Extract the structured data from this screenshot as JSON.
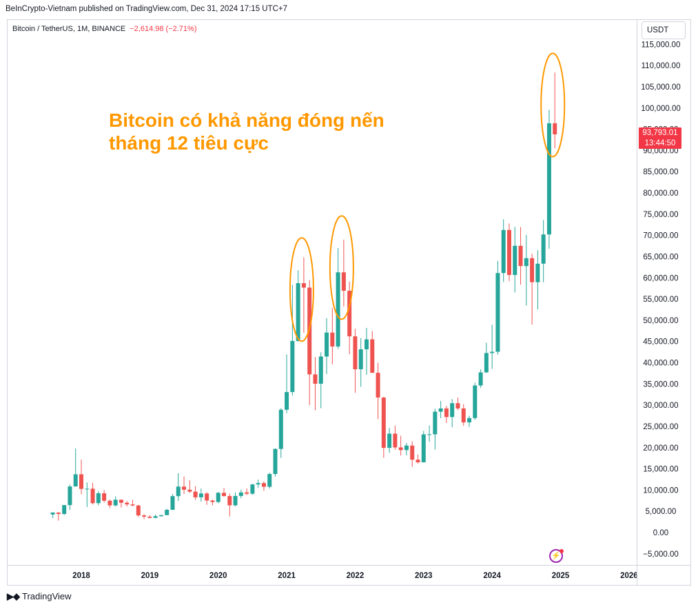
{
  "header": {
    "caption": "BeInCrypto-Vietnam published on TradingView.com, Dec 31, 2024 17:15 UTC+7"
  },
  "symbol": {
    "name": "Bitcoin / TetherUS, 1M, BINANCE",
    "change": "−2,614.98 (−2.71%)"
  },
  "currency_button": "USDT",
  "annotation": {
    "line1": "Bitcoin có khả năng đóng nến",
    "line2": "tháng 12 tiêu cực"
  },
  "price_tag": {
    "price": "93,793.01",
    "countdown": "13:44:50"
  },
  "footer": {
    "logo_mark": "𝟭𝟳",
    "logo_text": "TradingView"
  },
  "colors": {
    "up": "#26a69a",
    "down": "#ef5350",
    "ellipse": "#ff9800",
    "axis_text": "#131722"
  },
  "chart_data": {
    "type": "candlestick",
    "interval": "1M",
    "ylim": [
      -5000,
      115000
    ],
    "y_ticks": [
      -5000,
      0,
      5000,
      10000,
      15000,
      20000,
      25000,
      30000,
      35000,
      40000,
      45000,
      50000,
      55000,
      60000,
      65000,
      70000,
      75000,
      80000,
      85000,
      90000,
      95000,
      100000,
      105000,
      110000,
      115000
    ],
    "y_tick_labels": [
      "−5,000.00",
      "0.00",
      "5,000.00",
      "10,000.00",
      "15,000.00",
      "20,000.00",
      "25,000.00",
      "30,000.00",
      "35,000.00",
      "40,000.00",
      "45,000.00",
      "50,000.00",
      "55,000.00",
      "60,000.00",
      "65,000.00",
      "70,000.00",
      "75,000.00",
      "80,000.00",
      "85,000.00",
      "90,000.00",
      "95,000.00",
      "100,000.00",
      "105,000.00",
      "110,000.00",
      "115,000.00"
    ],
    "x_ticks": [
      {
        "label": "2018",
        "month": "2018-01"
      },
      {
        "label": "2019",
        "month": "2019-01"
      },
      {
        "label": "2020",
        "month": "2020-01"
      },
      {
        "label": "2021",
        "month": "2021-01"
      },
      {
        "label": "2022",
        "month": "2022-01"
      },
      {
        "label": "2023",
        "month": "2023-01"
      },
      {
        "label": "2024",
        "month": "2024-01"
      },
      {
        "label": "2025",
        "month": "2025-01"
      },
      {
        "label": "2026",
        "month": "2026-01"
      }
    ],
    "candles": [
      {
        "t": "2017-08",
        "o": 4261,
        "h": 4745,
        "l": 3400,
        "c": 4724
      },
      {
        "t": "2017-09",
        "o": 4690,
        "h": 4790,
        "l": 2817,
        "c": 4378
      },
      {
        "t": "2017-10",
        "o": 4378,
        "h": 6470,
        "l": 4110,
        "c": 6463
      },
      {
        "t": "2017-11",
        "o": 6463,
        "h": 11300,
        "l": 5325,
        "c": 10855
      },
      {
        "t": "2017-12",
        "o": 10855,
        "h": 19798,
        "l": 10855,
        "c": 13716
      },
      {
        "t": "2018-01",
        "o": 13716,
        "h": 17176,
        "l": 9035,
        "c": 10285
      },
      {
        "t": "2018-02",
        "o": 10285,
        "h": 11786,
        "l": 6000,
        "c": 10326
      },
      {
        "t": "2018-03",
        "o": 10326,
        "h": 11710,
        "l": 6600,
        "c": 6923
      },
      {
        "t": "2018-04",
        "o": 6923,
        "h": 9759,
        "l": 6430,
        "c": 9246
      },
      {
        "t": "2018-05",
        "o": 9246,
        "h": 10020,
        "l": 7032,
        "c": 7494
      },
      {
        "t": "2018-06",
        "o": 7494,
        "h": 7760,
        "l": 5755,
        "c": 6391
      },
      {
        "t": "2018-07",
        "o": 6391,
        "h": 8507,
        "l": 6111,
        "c": 7730
      },
      {
        "t": "2018-08",
        "o": 7730,
        "h": 7760,
        "l": 5880,
        "c": 7011
      },
      {
        "t": "2018-09",
        "o": 7011,
        "h": 7410,
        "l": 6112,
        "c": 6626
      },
      {
        "t": "2018-10",
        "o": 6626,
        "h": 7680,
        "l": 6205,
        "c": 6371
      },
      {
        "t": "2018-11",
        "o": 6371,
        "h": 6525,
        "l": 3652,
        "c": 4041
      },
      {
        "t": "2018-12",
        "o": 4041,
        "h": 4310,
        "l": 3157,
        "c": 3742
      },
      {
        "t": "2019-01",
        "o": 3742,
        "h": 4070,
        "l": 3350,
        "c": 3457
      },
      {
        "t": "2019-02",
        "o": 3457,
        "h": 4210,
        "l": 3371,
        "c": 3855
      },
      {
        "t": "2019-03",
        "o": 3855,
        "h": 4120,
        "l": 3758,
        "c": 4105
      },
      {
        "t": "2019-04",
        "o": 4105,
        "h": 5600,
        "l": 4067,
        "c": 5350
      },
      {
        "t": "2019-05",
        "o": 5350,
        "h": 9074,
        "l": 5332,
        "c": 8574
      },
      {
        "t": "2019-06",
        "o": 8574,
        "h": 13970,
        "l": 7444,
        "c": 10817
      },
      {
        "t": "2019-07",
        "o": 10817,
        "h": 13200,
        "l": 9070,
        "c": 10085
      },
      {
        "t": "2019-08",
        "o": 10085,
        "h": 12325,
        "l": 9320,
        "c": 9630
      },
      {
        "t": "2019-09",
        "o": 9630,
        "h": 10905,
        "l": 7710,
        "c": 8293
      },
      {
        "t": "2019-10",
        "o": 8293,
        "h": 10370,
        "l": 7300,
        "c": 9199
      },
      {
        "t": "2019-11",
        "o": 9199,
        "h": 9513,
        "l": 6515,
        "c": 7546
      },
      {
        "t": "2019-12",
        "o": 7546,
        "h": 7750,
        "l": 6435,
        "c": 7195
      },
      {
        "t": "2020-01",
        "o": 7195,
        "h": 9578,
        "l": 6871,
        "c": 9352
      },
      {
        "t": "2020-02",
        "o": 9352,
        "h": 10500,
        "l": 8445,
        "c": 8599
      },
      {
        "t": "2020-03",
        "o": 8599,
        "h": 9189,
        "l": 3782,
        "c": 6410
      },
      {
        "t": "2020-04",
        "o": 6410,
        "h": 9468,
        "l": 6150,
        "c": 8620
      },
      {
        "t": "2020-05",
        "o": 8620,
        "h": 10067,
        "l": 8106,
        "c": 9448
      },
      {
        "t": "2020-06",
        "o": 9448,
        "h": 10380,
        "l": 8833,
        "c": 9138
      },
      {
        "t": "2020-07",
        "o": 9138,
        "h": 11444,
        "l": 8893,
        "c": 11335
      },
      {
        "t": "2020-08",
        "o": 11335,
        "h": 12468,
        "l": 10525,
        "c": 11649
      },
      {
        "t": "2020-09",
        "o": 11649,
        "h": 12050,
        "l": 9825,
        "c": 10776
      },
      {
        "t": "2020-10",
        "o": 10776,
        "h": 14100,
        "l": 10375,
        "c": 13791
      },
      {
        "t": "2020-11",
        "o": 13791,
        "h": 19863,
        "l": 13195,
        "c": 19695
      },
      {
        "t": "2020-12",
        "o": 19695,
        "h": 29300,
        "l": 17572,
        "c": 28923
      },
      {
        "t": "2021-01",
        "o": 28923,
        "h": 41950,
        "l": 28130,
        "c": 33093
      },
      {
        "t": "2021-02",
        "o": 33093,
        "h": 58352,
        "l": 32296,
        "c": 45136
      },
      {
        "t": "2021-03",
        "o": 45136,
        "h": 61788,
        "l": 44950,
        "c": 58740
      },
      {
        "t": "2021-04",
        "o": 58740,
        "h": 64854,
        "l": 47044,
        "c": 57694
      },
      {
        "t": "2021-05",
        "o": 57694,
        "h": 59500,
        "l": 30000,
        "c": 37253
      },
      {
        "t": "2021-06",
        "o": 37253,
        "h": 41330,
        "l": 28805,
        "c": 35045
      },
      {
        "t": "2021-07",
        "o": 35045,
        "h": 42448,
        "l": 29278,
        "c": 41461
      },
      {
        "t": "2021-08",
        "o": 41461,
        "h": 50500,
        "l": 37332,
        "c": 47100
      },
      {
        "t": "2021-09",
        "o": 47100,
        "h": 52920,
        "l": 39600,
        "c": 43824
      },
      {
        "t": "2021-10",
        "o": 43824,
        "h": 67000,
        "l": 43283,
        "c": 61300
      },
      {
        "t": "2021-11",
        "o": 61300,
        "h": 69000,
        "l": 53256,
        "c": 56950
      },
      {
        "t": "2021-12",
        "o": 56950,
        "h": 59100,
        "l": 42000,
        "c": 46217
      },
      {
        "t": "2022-01",
        "o": 46217,
        "h": 47990,
        "l": 32917,
        "c": 38466
      },
      {
        "t": "2022-02",
        "o": 38466,
        "h": 45821,
        "l": 34322,
        "c": 43160
      },
      {
        "t": "2022-03",
        "o": 43160,
        "h": 48190,
        "l": 37155,
        "c": 45510
      },
      {
        "t": "2022-04",
        "o": 45510,
        "h": 47444,
        "l": 37578,
        "c": 37630
      },
      {
        "t": "2022-05",
        "o": 37630,
        "h": 40023,
        "l": 26700,
        "c": 31801
      },
      {
        "t": "2022-06",
        "o": 31801,
        "h": 31982,
        "l": 17622,
        "c": 19942
      },
      {
        "t": "2022-07",
        "o": 19942,
        "h": 24668,
        "l": 18781,
        "c": 23293
      },
      {
        "t": "2022-08",
        "o": 23293,
        "h": 25211,
        "l": 19521,
        "c": 20050
      },
      {
        "t": "2022-09",
        "o": 20050,
        "h": 22800,
        "l": 18125,
        "c": 19423
      },
      {
        "t": "2022-10",
        "o": 19423,
        "h": 21085,
        "l": 18190,
        "c": 20491
      },
      {
        "t": "2022-11",
        "o": 20491,
        "h": 21480,
        "l": 15476,
        "c": 17164
      },
      {
        "t": "2022-12",
        "o": 17164,
        "h": 18387,
        "l": 16256,
        "c": 16542
      },
      {
        "t": "2023-01",
        "o": 16542,
        "h": 23960,
        "l": 16500,
        "c": 23125
      },
      {
        "t": "2023-02",
        "o": 23125,
        "h": 25250,
        "l": 21352,
        "c": 23141
      },
      {
        "t": "2023-03",
        "o": 23141,
        "h": 29184,
        "l": 19549,
        "c": 28465
      },
      {
        "t": "2023-04",
        "o": 28465,
        "h": 31000,
        "l": 26942,
        "c": 29233
      },
      {
        "t": "2023-05",
        "o": 29233,
        "h": 29820,
        "l": 25811,
        "c": 27210
      },
      {
        "t": "2023-06",
        "o": 27210,
        "h": 31431,
        "l": 24800,
        "c": 30472
      },
      {
        "t": "2023-07",
        "o": 30472,
        "h": 31804,
        "l": 28861,
        "c": 29232
      },
      {
        "t": "2023-08",
        "o": 29232,
        "h": 30244,
        "l": 25166,
        "c": 25941
      },
      {
        "t": "2023-09",
        "o": 25941,
        "h": 27500,
        "l": 24900,
        "c": 26962
      },
      {
        "t": "2023-10",
        "o": 26962,
        "h": 35280,
        "l": 26538,
        "c": 34640
      },
      {
        "t": "2023-11",
        "o": 34640,
        "h": 38450,
        "l": 34097,
        "c": 37723
      },
      {
        "t": "2023-12",
        "o": 37723,
        "h": 44700,
        "l": 37615,
        "c": 42283
      },
      {
        "t": "2024-01",
        "o": 42283,
        "h": 48969,
        "l": 38555,
        "c": 42582
      },
      {
        "t": "2024-02",
        "o": 42582,
        "h": 64000,
        "l": 41884,
        "c": 61130
      },
      {
        "t": "2024-03",
        "o": 61130,
        "h": 73777,
        "l": 59005,
        "c": 71280
      },
      {
        "t": "2024-04",
        "o": 71280,
        "h": 72797,
        "l": 59191,
        "c": 60672
      },
      {
        "t": "2024-05",
        "o": 60672,
        "h": 71979,
        "l": 56552,
        "c": 67540
      },
      {
        "t": "2024-06",
        "o": 67540,
        "h": 71982,
        "l": 58402,
        "c": 62772
      },
      {
        "t": "2024-07",
        "o": 62772,
        "h": 70079,
        "l": 53485,
        "c": 64628
      },
      {
        "t": "2024-08",
        "o": 64628,
        "h": 65660,
        "l": 49000,
        "c": 58973
      },
      {
        "t": "2024-09",
        "o": 58973,
        "h": 66498,
        "l": 52550,
        "c": 63328
      },
      {
        "t": "2024-10",
        "o": 63328,
        "h": 73620,
        "l": 58946,
        "c": 70215
      },
      {
        "t": "2024-11",
        "o": 70215,
        "h": 99588,
        "l": 66835,
        "c": 96407
      },
      {
        "t": "2024-12",
        "o": 96407,
        "h": 108353,
        "l": 90500,
        "c": 93793
      }
    ],
    "highlighted_months": [
      "2021-04",
      "2021-11",
      "2024-12"
    ]
  }
}
